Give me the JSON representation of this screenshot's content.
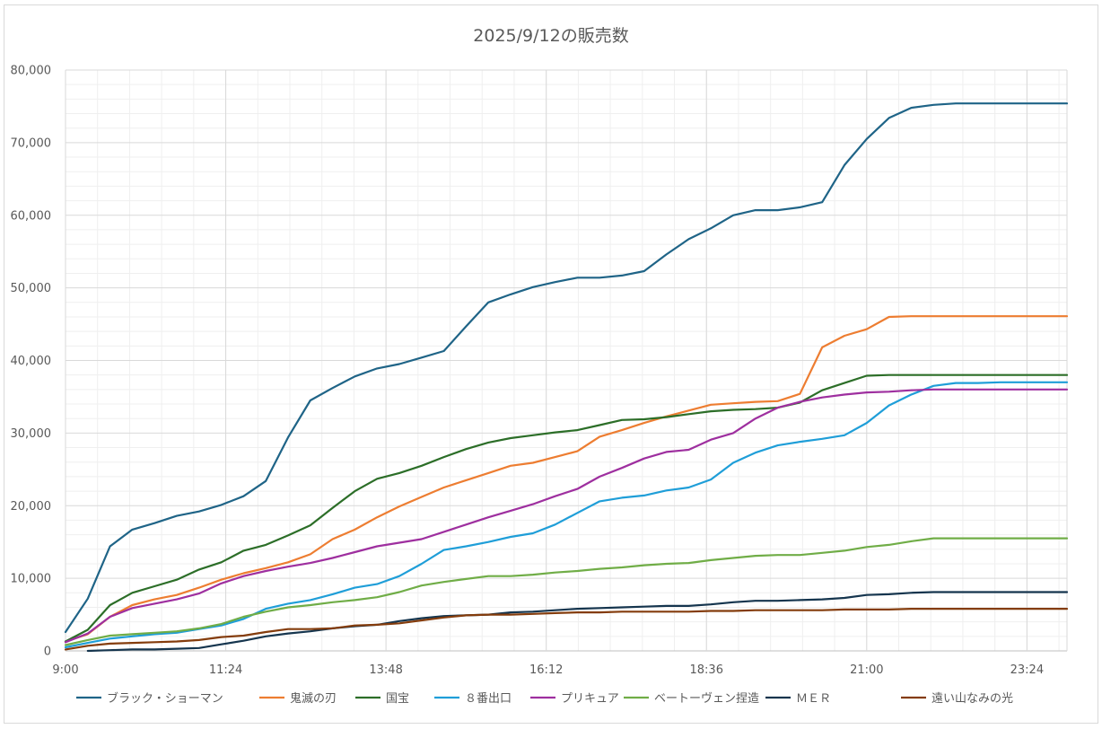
{
  "chart_data": {
    "type": "line",
    "title": "2025/9/12の販売数",
    "xlabel": "",
    "ylabel": "",
    "ylim": [
      0,
      80000
    ],
    "y_ticks": [
      0,
      10000,
      20000,
      30000,
      40000,
      50000,
      60000,
      70000,
      80000
    ],
    "y_tick_labels": [
      "0",
      "10,000",
      "20,000",
      "30,000",
      "40,000",
      "50,000",
      "60,000",
      "70,000",
      "80,000"
    ],
    "xlim": [
      "9:00",
      "24:00"
    ],
    "x_ticks": [
      "9:00",
      "11:24",
      "13:48",
      "16:12",
      "18:36",
      "21:00",
      "23:24"
    ],
    "grid": true,
    "legend": "bottom",
    "x": [
      "9:00",
      "9:20",
      "9:40",
      "10:00",
      "10:20",
      "10:40",
      "11:00",
      "11:20",
      "11:40",
      "12:00",
      "12:20",
      "12:40",
      "13:00",
      "13:20",
      "13:40",
      "14:00",
      "14:20",
      "14:40",
      "15:00",
      "15:20",
      "15:40",
      "16:00",
      "16:20",
      "16:40",
      "17:00",
      "17:20",
      "17:40",
      "18:00",
      "18:20",
      "18:40",
      "19:00",
      "19:20",
      "19:40",
      "20:00",
      "20:20",
      "20:40",
      "21:00",
      "21:20",
      "21:40",
      "22:00",
      "22:20",
      "22:40",
      "23:00",
      "23:20",
      "23:40",
      "24:00"
    ],
    "series": [
      {
        "name": "ブラック・ショーマン",
        "color": "#1f6487",
        "values": [
          2600,
          7200,
          14400,
          16700,
          17600,
          18600,
          19200,
          20100,
          21300,
          23400,
          29400,
          34500,
          36200,
          37800,
          38900,
          39500,
          40400,
          41300,
          44700,
          48000,
          49100,
          50100,
          50800,
          51400,
          51400,
          51700,
          52300,
          54600,
          56700,
          58200,
          60000,
          60700,
          60700,
          61100,
          61800,
          66900,
          70500,
          73400,
          74800,
          75200,
          75400,
          75400,
          75400,
          75400,
          75400,
          75400
        ]
      },
      {
        "name": "鬼滅の刃",
        "color": "#ed7d31",
        "values": [
          1300,
          2300,
          4700,
          6300,
          7100,
          7700,
          8700,
          9800,
          10700,
          11400,
          12200,
          13300,
          15400,
          16700,
          18400,
          19900,
          21200,
          22500,
          23500,
          24500,
          25500,
          25900,
          26700,
          27500,
          29500,
          30400,
          31400,
          32300,
          33100,
          33900,
          34100,
          34300,
          34400,
          35400,
          41800,
          43400,
          44300,
          46000,
          46100,
          46100,
          46100,
          46100,
          46100,
          46100,
          46100,
          46100
        ]
      },
      {
        "name": "国宝",
        "color": "#2c6e28",
        "values": [
          1300,
          2900,
          6300,
          8000,
          8900,
          9800,
          11200,
          12200,
          13800,
          14600,
          15900,
          17300,
          19700,
          22000,
          23700,
          24500,
          25500,
          26700,
          27800,
          28700,
          29300,
          29700,
          30100,
          30400,
          31100,
          31800,
          31900,
          32200,
          32600,
          33000,
          33200,
          33300,
          33500,
          34200,
          35900,
          36900,
          37900,
          38000,
          38000,
          38000,
          38000,
          38000,
          38000,
          38000,
          38000,
          38000
        ]
      },
      {
        "name": "８番出口",
        "color": "#1f9ed8",
        "values": [
          500,
          1100,
          1700,
          2000,
          2300,
          2500,
          3000,
          3500,
          4400,
          5800,
          6500,
          7000,
          7800,
          8700,
          9200,
          10300,
          12000,
          13900,
          14400,
          15000,
          15700,
          16200,
          17400,
          19000,
          20600,
          21100,
          21400,
          22100,
          22500,
          23600,
          25900,
          27300,
          28300,
          28800,
          29200,
          29700,
          31400,
          33800,
          35300,
          36500,
          36900,
          36900,
          37000,
          37000,
          37000,
          37000
        ]
      },
      {
        "name": "プリキュア",
        "color": "#9e2f9f",
        "values": [
          1200,
          2400,
          4700,
          5900,
          6500,
          7100,
          7900,
          9300,
          10300,
          11000,
          11600,
          12100,
          12800,
          13600,
          14400,
          14900,
          15400,
          16400,
          17400,
          18400,
          19300,
          20200,
          21300,
          22300,
          24000,
          25200,
          26500,
          27400,
          27700,
          29100,
          30000,
          32000,
          33500,
          34300,
          34900,
          35300,
          35600,
          35700,
          35900,
          36000,
          36000,
          36000,
          36000,
          36000,
          36000,
          36000
        ]
      },
      {
        "name": "ベートーヴェン捏造",
        "color": "#70ad47",
        "values": [
          800,
          1500,
          2100,
          2300,
          2500,
          2700,
          3100,
          3700,
          4700,
          5400,
          6000,
          6300,
          6700,
          7000,
          7400,
          8100,
          9000,
          9500,
          9900,
          10300,
          10300,
          10500,
          10800,
          11000,
          11300,
          11500,
          11800,
          12000,
          12100,
          12500,
          12800,
          13100,
          13200,
          13200,
          13500,
          13800,
          14300,
          14600,
          15100,
          15500,
          15500,
          15500,
          15500,
          15500,
          15500,
          15500
        ]
      },
      {
        "name": "ＭＥＲ",
        "color": "#15354e",
        "values": [
          null,
          0,
          100,
          200,
          200,
          300,
          400,
          900,
          1400,
          2000,
          2400,
          2700,
          3100,
          3400,
          3600,
          4100,
          4500,
          4800,
          4900,
          5000,
          5300,
          5400,
          5600,
          5800,
          5900,
          6000,
          6100,
          6200,
          6200,
          6400,
          6700,
          6900,
          6900,
          7000,
          7100,
          7300,
          7700,
          7800,
          8000,
          8100,
          8100,
          8100,
          8100,
          8100,
          8100,
          8100
        ]
      },
      {
        "name": "遠い山なみの光",
        "color": "#843c0c",
        "values": [
          200,
          700,
          1000,
          1100,
          1200,
          1300,
          1500,
          1900,
          2100,
          2600,
          3000,
          3000,
          3100,
          3500,
          3600,
          3800,
          4200,
          4600,
          4900,
          5000,
          5000,
          5100,
          5200,
          5300,
          5300,
          5400,
          5400,
          5400,
          5400,
          5500,
          5500,
          5600,
          5600,
          5600,
          5600,
          5700,
          5700,
          5700,
          5800,
          5800,
          5800,
          5800,
          5800,
          5800,
          5800,
          5800
        ]
      }
    ]
  }
}
